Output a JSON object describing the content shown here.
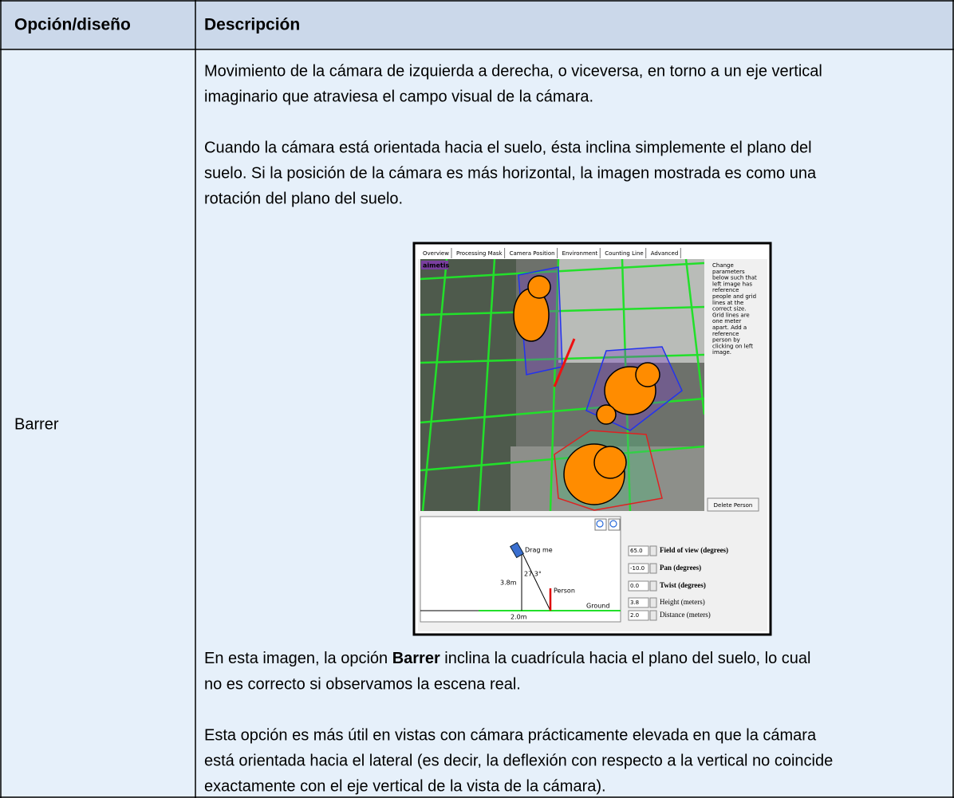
{
  "header": {
    "col1": "Opción/diseño",
    "col2": "Descripción"
  },
  "row": {
    "option": "Barrer",
    "paragraph1": [
      "Movimiento de la cámara de izquierda a derecha, o viceversa, en torno a un eje vertical",
      "imaginario que atraviesa el campo visual de la cámara."
    ],
    "paragraph2": [
      "Cuando la cámara está orientada hacia el suelo, ésta inclina simplemente el plano del",
      "suelo. Si la posición de la cámara es más horizontal, la imagen mostrada es como una",
      "rotación del plano del suelo."
    ],
    "paragraph3": {
      "line1": [
        "En esta imagen, la opción ",
        "Barrer",
        " inclina la cuadrícula hacia el plano del suelo, lo cual"
      ],
      "line2": "no es correcto si observamos la escena real."
    },
    "paragraph4": [
      "Esta opción es más útil en vistas con cámara prácticamente elevada en que la cámara",
      "está orientada hacia el lateral (es decir, la deflexión con respecto a la vertical no coincide",
      "exactamente con el eje vertical de la vista de la cámara)."
    ]
  },
  "screenshot": {
    "tabs": [
      "Overview",
      "Processing Mask",
      "Camera Position",
      "Environment",
      "Counting Line",
      "Advanced"
    ],
    "logo": "aimetis",
    "help": [
      "Change",
      "parameters",
      "below such that",
      "left image has",
      "reference",
      "people and grid",
      "lines at the",
      "correct size.",
      "Grid lines are",
      "one meter",
      "apart.  Add a",
      "reference",
      "person by",
      "clicking on left",
      "image."
    ],
    "button": "Delete Person",
    "diagram": {
      "drag": "Drag me",
      "angle": "27.3°",
      "height": "3.8m",
      "person": "Person",
      "ground": "Ground",
      "distance": "2.0m"
    },
    "controls": [
      {
        "value": "65.0",
        "label": "Field of view (degrees)"
      },
      {
        "value": "-10.0",
        "label": "Pan (degrees)"
      },
      {
        "value": "0.0",
        "label": "Twist (degrees)"
      },
      {
        "value": "3.8",
        "label": "Height (meters)"
      },
      {
        "value": "2.0",
        "label": "Distance (meters)"
      }
    ]
  }
}
